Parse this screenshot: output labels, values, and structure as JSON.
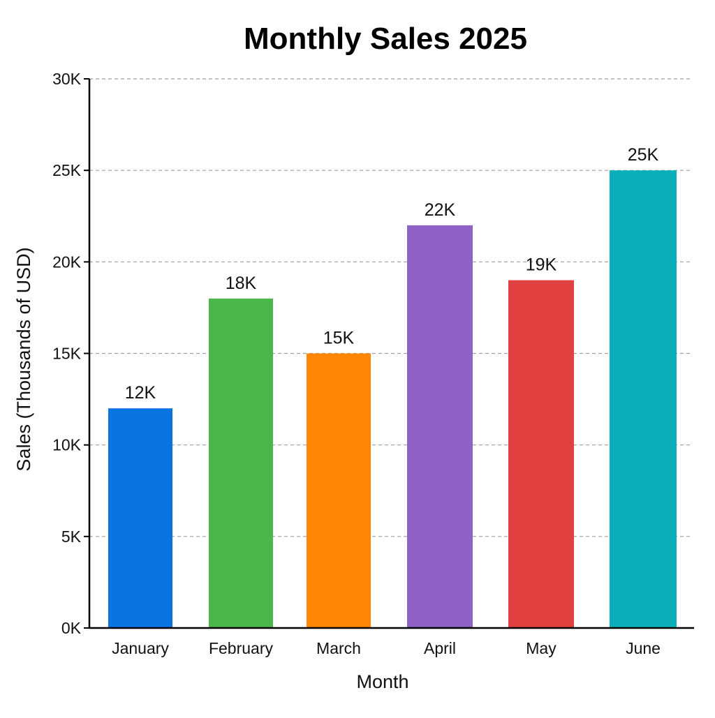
{
  "chart_data": {
    "type": "bar",
    "title": "Monthly Sales 2025",
    "xlabel": "Month",
    "ylabel": "Sales (Thousands of USD)",
    "categories": [
      "January",
      "February",
      "March",
      "April",
      "May",
      "June"
    ],
    "values": [
      12,
      18,
      15,
      22,
      19,
      25
    ],
    "data_labels": [
      "12K",
      "18K",
      "15K",
      "22K",
      "19K",
      "25K"
    ],
    "colors": [
      "#0a74e0",
      "#4db64a",
      "#ff8503",
      "#8f63c6",
      "#e24141",
      "#0aafb9"
    ],
    "ylim": [
      0,
      30
    ],
    "yticks": [
      0,
      5,
      10,
      15,
      20,
      25,
      30
    ],
    "ytick_labels": [
      "0K",
      "5K",
      "10K",
      "15K",
      "20K",
      "25K",
      "30K"
    ],
    "grid": true,
    "legend": "none"
  }
}
